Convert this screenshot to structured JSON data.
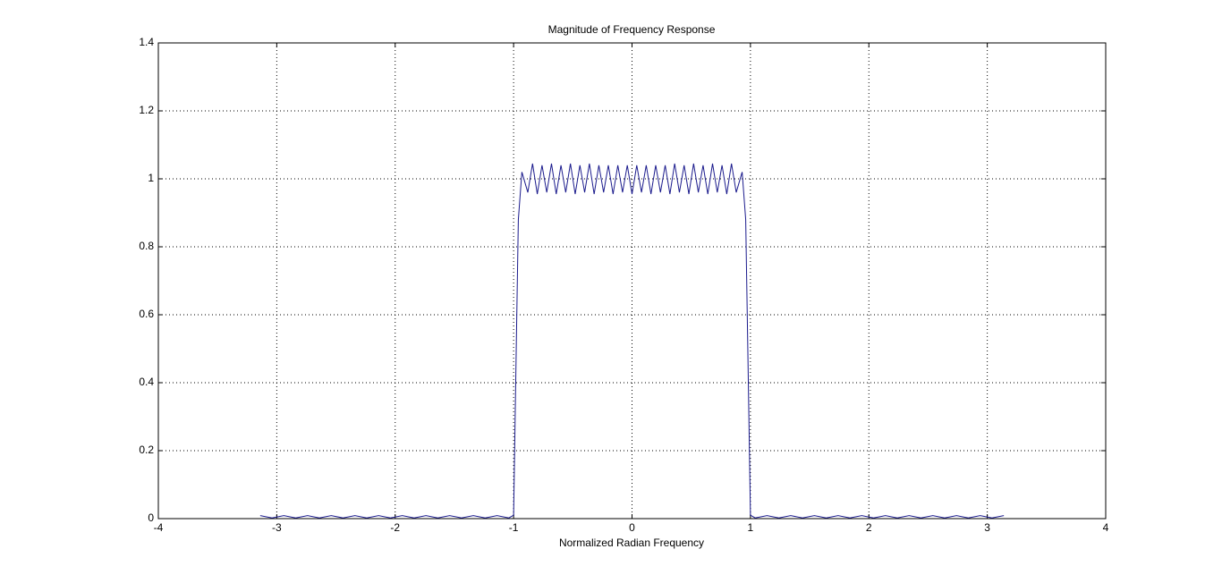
{
  "chart_data": {
    "type": "line",
    "title": "Magnitude of Frequency Response",
    "xlabel": "Normalized Radian Frequency",
    "xlim": [
      -4,
      4
    ],
    "xticks": [
      -4,
      -3,
      -2,
      -1,
      0,
      1,
      2,
      3,
      4
    ],
    "ylim": [
      0,
      1.4
    ],
    "yticks": [
      0,
      0.2,
      0.4,
      0.6,
      0.8,
      1,
      1.2,
      1.4
    ],
    "grid": true,
    "series": [
      {
        "color": "#1a1a8c",
        "x": [
          -3.14,
          -3.04,
          -2.94,
          -2.84,
          -2.74,
          -2.64,
          -2.54,
          -2.44,
          -2.34,
          -2.24,
          -2.14,
          -2.04,
          -1.94,
          -1.84,
          -1.74,
          -1.64,
          -1.54,
          -1.44,
          -1.34,
          -1.24,
          -1.14,
          -1.04,
          -1.0,
          -0.98,
          -0.96,
          -0.93,
          -0.88,
          -0.84,
          -0.8,
          -0.76,
          -0.72,
          -0.68,
          -0.64,
          -0.6,
          -0.56,
          -0.52,
          -0.48,
          -0.44,
          -0.4,
          -0.36,
          -0.32,
          -0.28,
          -0.24,
          -0.2,
          -0.16,
          -0.12,
          -0.08,
          -0.04,
          0,
          0.04,
          0.08,
          0.12,
          0.16,
          0.2,
          0.24,
          0.28,
          0.32,
          0.36,
          0.4,
          0.44,
          0.48,
          0.52,
          0.56,
          0.6,
          0.64,
          0.68,
          0.72,
          0.76,
          0.8,
          0.84,
          0.88,
          0.93,
          0.96,
          0.98,
          1.0,
          1.04,
          1.14,
          1.24,
          1.34,
          1.44,
          1.54,
          1.64,
          1.74,
          1.84,
          1.94,
          2.04,
          2.14,
          2.24,
          2.34,
          2.44,
          2.54,
          2.64,
          2.74,
          2.84,
          2.94,
          3.04,
          3.14
        ],
        "values": [
          0.009,
          0.002,
          0.009,
          0.002,
          0.009,
          0.002,
          0.009,
          0.002,
          0.009,
          0.002,
          0.009,
          0.002,
          0.009,
          0.002,
          0.009,
          0.002,
          0.009,
          0.002,
          0.009,
          0.002,
          0.009,
          0.002,
          0.01,
          0.45,
          0.88,
          1.02,
          0.96,
          1.045,
          0.955,
          1.04,
          0.96,
          1.045,
          0.955,
          1.04,
          0.96,
          1.045,
          0.955,
          1.04,
          0.96,
          1.045,
          0.955,
          1.04,
          0.96,
          1.04,
          0.955,
          1.04,
          0.96,
          1.04,
          0.955,
          1.04,
          0.96,
          1.04,
          0.955,
          1.04,
          0.96,
          1.04,
          0.955,
          1.045,
          0.96,
          1.04,
          0.955,
          1.045,
          0.96,
          1.04,
          0.955,
          1.045,
          0.96,
          1.04,
          0.955,
          1.045,
          0.96,
          1.02,
          0.88,
          0.45,
          0.01,
          0.002,
          0.009,
          0.002,
          0.009,
          0.002,
          0.009,
          0.002,
          0.009,
          0.002,
          0.009,
          0.002,
          0.009,
          0.002,
          0.009,
          0.002,
          0.009,
          0.002,
          0.009,
          0.002,
          0.009,
          0.002,
          0.009
        ]
      }
    ]
  }
}
